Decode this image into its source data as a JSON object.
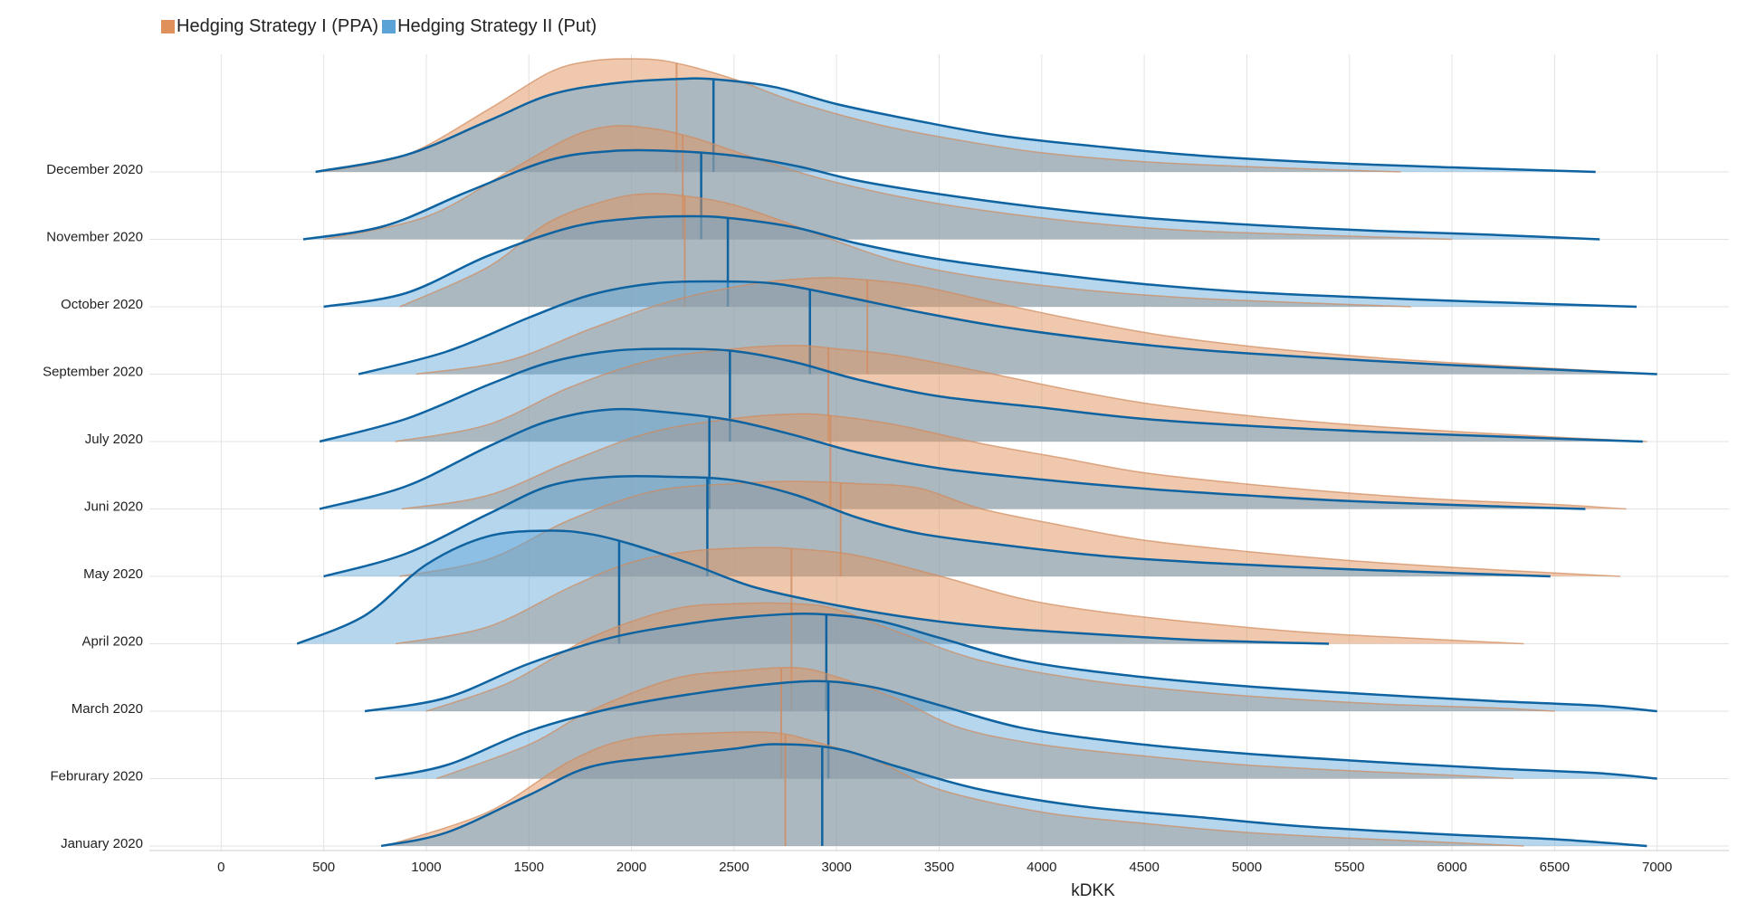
{
  "legend": {
    "items": [
      {
        "label": "Hedging Strategy I (PPA)",
        "color": "#e0915b"
      },
      {
        "label": "Hedging Strategy II (Put)",
        "color": "#5ba3d6"
      }
    ]
  },
  "chart_data": {
    "type": "area",
    "subtype": "ridgeline-density",
    "xlabel": "kDKK",
    "xlim": [
      -350,
      7350
    ],
    "xticks": [
      0,
      500,
      1000,
      1500,
      2000,
      2500,
      3000,
      3500,
      4000,
      4500,
      5000,
      5500,
      6000,
      6500,
      7000
    ],
    "grid": true,
    "legend_position": "top-left",
    "series_styles": [
      {
        "name": "Hedging Strategy I (PPA)",
        "fill": "#e0915b",
        "fill_opacity": 0.5,
        "line": "#d08a5c"
      },
      {
        "name": "Hedging Strategy II (Put)",
        "fill": "#5ba3d6",
        "fill_opacity": 0.45,
        "line": "#0e63a0"
      }
    ],
    "categories": [
      "January 2020",
      "Februrary 2020",
      "March 2020",
      "April 2020",
      "May 2020",
      "Juni 2020",
      "July 2020",
      "September 2020",
      "October 2020",
      "November 2020",
      "December 2020"
    ],
    "rows": [
      {
        "label": "January 2020",
        "ppa": {
          "min": 800,
          "max": 6350,
          "x": [
            800,
            1300,
            1700,
            2000,
            2400,
            2700,
            2900,
            3200,
            3500,
            4000,
            4500,
            5000,
            5500,
            6000,
            6350
          ],
          "y": [
            0,
            0.3,
            0.75,
            0.95,
            1.0,
            1.0,
            0.92,
            0.75,
            0.5,
            0.3,
            0.2,
            0.12,
            0.07,
            0.03,
            0
          ],
          "median": 2750
        },
        "put": {
          "min": 780,
          "max": 6950,
          "x": [
            780,
            1100,
            1500,
            1800,
            2200,
            2500,
            2700,
            3000,
            3300,
            3700,
            4200,
            4800,
            5300,
            6000,
            6500,
            6950
          ],
          "y": [
            0,
            0.12,
            0.45,
            0.7,
            0.8,
            0.86,
            0.9,
            0.86,
            0.7,
            0.5,
            0.35,
            0.25,
            0.17,
            0.1,
            0.06,
            0
          ],
          "median": 2930
        }
      },
      {
        "label": "Februrary 2020",
        "ppa": {
          "min": 1050,
          "max": 6300,
          "x": [
            1050,
            1500,
            1800,
            2200,
            2500,
            2800,
            3000,
            3300,
            3600,
            4000,
            4500,
            5000,
            5500,
            6000,
            6300
          ],
          "y": [
            0,
            0.3,
            0.6,
            0.88,
            0.95,
            0.98,
            0.9,
            0.7,
            0.45,
            0.3,
            0.2,
            0.12,
            0.07,
            0.03,
            0
          ],
          "median": 2730
        },
        "put": {
          "min": 750,
          "max": 7000,
          "x": [
            750,
            1100,
            1500,
            1900,
            2300,
            2700,
            2950,
            3200,
            3500,
            3900,
            4400,
            5000,
            5600,
            6200,
            6700,
            7000
          ],
          "y": [
            0,
            0.12,
            0.42,
            0.62,
            0.75,
            0.84,
            0.86,
            0.8,
            0.65,
            0.45,
            0.32,
            0.22,
            0.15,
            0.09,
            0.05,
            0
          ],
          "median": 2960
        }
      },
      {
        "label": "March 2020",
        "ppa": {
          "min": 1000,
          "max": 6500,
          "x": [
            1000,
            1400,
            1800,
            2200,
            2500,
            2800,
            3000,
            3300,
            3700,
            4200,
            4700,
            5200,
            5700,
            6200,
            6500
          ],
          "y": [
            0,
            0.25,
            0.65,
            0.9,
            0.95,
            0.95,
            0.9,
            0.7,
            0.45,
            0.28,
            0.18,
            0.11,
            0.06,
            0.03,
            0
          ],
          "median": 2780
        },
        "put": {
          "min": 700,
          "max": 7000,
          "x": [
            700,
            1100,
            1500,
            1900,
            2300,
            2600,
            2900,
            3200,
            3500,
            3900,
            4400,
            5000,
            5600,
            6200,
            6700,
            7000
          ],
          "y": [
            0,
            0.12,
            0.42,
            0.65,
            0.78,
            0.84,
            0.86,
            0.8,
            0.65,
            0.45,
            0.32,
            0.22,
            0.15,
            0.09,
            0.05,
            0
          ],
          "median": 2950
        }
      },
      {
        "label": "April 2020",
        "ppa": {
          "min": 850,
          "max": 6350,
          "x": [
            850,
            1300,
            1700,
            2000,
            2300,
            2600,
            2800,
            3100,
            3500,
            3900,
            4300,
            4800,
            5300,
            5800,
            6350
          ],
          "y": [
            0,
            0.15,
            0.5,
            0.72,
            0.82,
            0.85,
            0.84,
            0.78,
            0.6,
            0.4,
            0.28,
            0.18,
            0.1,
            0.05,
            0
          ],
          "median": 2780
        },
        "put": {
          "min": 370,
          "max": 5400,
          "x": [
            370,
            700,
            1000,
            1300,
            1600,
            1800,
            2000,
            2300,
            2600,
            3000,
            3400,
            3800,
            4300,
            4800,
            5400
          ],
          "y": [
            0,
            0.25,
            0.7,
            0.95,
            1.0,
            0.97,
            0.88,
            0.7,
            0.5,
            0.34,
            0.22,
            0.14,
            0.08,
            0.03,
            0
          ],
          "median": 1940
        }
      },
      {
        "label": "May 2020",
        "ppa": {
          "min": 870,
          "max": 6820,
          "x": [
            870,
            1300,
            1700,
            2100,
            2500,
            2800,
            3100,
            3400,
            3700,
            4100,
            4500,
            5000,
            5500,
            6000,
            6500,
            6820
          ],
          "y": [
            0,
            0.15,
            0.5,
            0.75,
            0.82,
            0.84,
            0.82,
            0.78,
            0.6,
            0.45,
            0.32,
            0.22,
            0.14,
            0.08,
            0.03,
            0
          ],
          "median": 3020
        },
        "put": {
          "min": 500,
          "max": 6480,
          "x": [
            500,
            900,
            1300,
            1600,
            1900,
            2200,
            2500,
            2800,
            3100,
            3400,
            3800,
            4300,
            4800,
            5400,
            6000,
            6480
          ],
          "y": [
            0,
            0.2,
            0.55,
            0.8,
            0.88,
            0.88,
            0.85,
            0.72,
            0.52,
            0.38,
            0.28,
            0.18,
            0.12,
            0.07,
            0.03,
            0
          ],
          "median": 2370
        }
      },
      {
        "label": "Juni 2020",
        "ppa": {
          "min": 880,
          "max": 6850,
          "x": [
            880,
            1300,
            1700,
            2100,
            2500,
            2800,
            3000,
            3300,
            3700,
            4100,
            4500,
            5000,
            5500,
            6000,
            6500,
            6850
          ],
          "y": [
            0,
            0.12,
            0.42,
            0.68,
            0.8,
            0.84,
            0.82,
            0.74,
            0.58,
            0.45,
            0.32,
            0.22,
            0.14,
            0.08,
            0.04,
            0
          ],
          "median": 2970
        },
        "put": {
          "min": 480,
          "max": 6650,
          "x": [
            480,
            900,
            1300,
            1600,
            1900,
            2200,
            2500,
            2800,
            3100,
            3500,
            4000,
            4500,
            5000,
            5500,
            6100,
            6650
          ],
          "y": [
            0,
            0.2,
            0.55,
            0.78,
            0.88,
            0.85,
            0.78,
            0.65,
            0.5,
            0.36,
            0.26,
            0.18,
            0.12,
            0.07,
            0.03,
            0
          ],
          "median": 2380
        }
      },
      {
        "label": "July 2020",
        "ppa": {
          "min": 850,
          "max": 6950,
          "x": [
            850,
            1300,
            1700,
            2100,
            2500,
            2800,
            3000,
            3300,
            3700,
            4100,
            4500,
            5000,
            5500,
            6000,
            6500,
            6950
          ],
          "y": [
            0,
            0.15,
            0.48,
            0.72,
            0.82,
            0.85,
            0.82,
            0.76,
            0.62,
            0.47,
            0.34,
            0.23,
            0.15,
            0.09,
            0.04,
            0
          ],
          "median": 2960
        },
        "put": {
          "min": 480,
          "max": 6930,
          "x": [
            480,
            900,
            1300,
            1600,
            1900,
            2200,
            2500,
            2800,
            3100,
            3500,
            4000,
            4500,
            5100,
            5700,
            6300,
            6930
          ],
          "y": [
            0,
            0.2,
            0.5,
            0.7,
            0.8,
            0.82,
            0.8,
            0.7,
            0.55,
            0.4,
            0.3,
            0.2,
            0.13,
            0.08,
            0.04,
            0
          ],
          "median": 2480
        }
      },
      {
        "label": "September 2020",
        "ppa": {
          "min": 950,
          "max": 7000,
          "x": [
            950,
            1400,
            1800,
            2200,
            2600,
            2900,
            3100,
            3400,
            3800,
            4200,
            4600,
            5100,
            5600,
            6100,
            6600,
            7000
          ],
          "y": [
            0,
            0.12,
            0.4,
            0.65,
            0.8,
            0.85,
            0.84,
            0.78,
            0.62,
            0.47,
            0.34,
            0.23,
            0.15,
            0.09,
            0.04,
            0
          ],
          "median": 3150
        },
        "put": {
          "min": 670,
          "max": 7000,
          "x": [
            670,
            1100,
            1500,
            1800,
            2100,
            2400,
            2700,
            3000,
            3400,
            3800,
            4300,
            4800,
            5400,
            6000,
            6500,
            7000
          ],
          "y": [
            0,
            0.2,
            0.5,
            0.7,
            0.8,
            0.82,
            0.8,
            0.7,
            0.55,
            0.42,
            0.3,
            0.21,
            0.14,
            0.08,
            0.04,
            0
          ],
          "median": 2870
        }
      },
      {
        "label": "October 2020",
        "ppa": {
          "min": 870,
          "max": 5800,
          "x": [
            870,
            1300,
            1600,
            1900,
            2100,
            2300,
            2500,
            2700,
            3000,
            3300,
            3700,
            4200,
            4700,
            5200,
            5800
          ],
          "y": [
            0,
            0.35,
            0.75,
            0.95,
            1.0,
            0.97,
            0.9,
            0.78,
            0.58,
            0.4,
            0.26,
            0.15,
            0.08,
            0.04,
            0
          ],
          "median": 2260
        },
        "put": {
          "min": 500,
          "max": 6900,
          "x": [
            500,
            900,
            1300,
            1700,
            2000,
            2300,
            2500,
            2800,
            3100,
            3500,
            4000,
            4500,
            5000,
            5600,
            6200,
            6900
          ],
          "y": [
            0,
            0.12,
            0.45,
            0.7,
            0.78,
            0.8,
            0.78,
            0.7,
            0.56,
            0.42,
            0.3,
            0.2,
            0.13,
            0.08,
            0.04,
            0
          ],
          "median": 2470
        }
      },
      {
        "label": "November 2020",
        "ppa": {
          "min": 500,
          "max": 6000,
          "x": [
            500,
            1000,
            1400,
            1700,
            1900,
            2100,
            2300,
            2600,
            2900,
            3300,
            3700,
            4200,
            4700,
            5300,
            6000
          ],
          "y": [
            0,
            0.2,
            0.6,
            0.9,
            1.0,
            0.98,
            0.9,
            0.72,
            0.55,
            0.38,
            0.26,
            0.15,
            0.08,
            0.04,
            0
          ],
          "median": 2250
        },
        "put": {
          "min": 400,
          "max": 6720,
          "x": [
            400,
            800,
            1200,
            1600,
            1900,
            2200,
            2500,
            2800,
            3100,
            3500,
            4000,
            4500,
            5100,
            5700,
            6200,
            6720
          ],
          "y": [
            0,
            0.12,
            0.42,
            0.7,
            0.78,
            0.78,
            0.74,
            0.65,
            0.52,
            0.4,
            0.28,
            0.19,
            0.12,
            0.07,
            0.04,
            0
          ],
          "median": 2340
        }
      },
      {
        "label": "December 2020",
        "ppa": {
          "min": 480,
          "max": 5750,
          "x": [
            480,
            900,
            1300,
            1600,
            1800,
            2000,
            2200,
            2500,
            2800,
            3200,
            3600,
            4000,
            4500,
            5100,
            5750
          ],
          "y": [
            0,
            0.15,
            0.55,
            0.88,
            0.98,
            1.0,
            0.97,
            0.82,
            0.62,
            0.42,
            0.28,
            0.17,
            0.09,
            0.04,
            0
          ],
          "median": 2220
        },
        "put": {
          "min": 460,
          "max": 6700,
          "x": [
            460,
            900,
            1300,
            1600,
            1900,
            2200,
            2400,
            2700,
            3000,
            3400,
            3800,
            4300,
            4800,
            5400,
            6000,
            6700
          ],
          "y": [
            0,
            0.15,
            0.45,
            0.68,
            0.78,
            0.82,
            0.82,
            0.75,
            0.6,
            0.45,
            0.32,
            0.22,
            0.14,
            0.08,
            0.04,
            0
          ],
          "median": 2400
        }
      }
    ]
  }
}
